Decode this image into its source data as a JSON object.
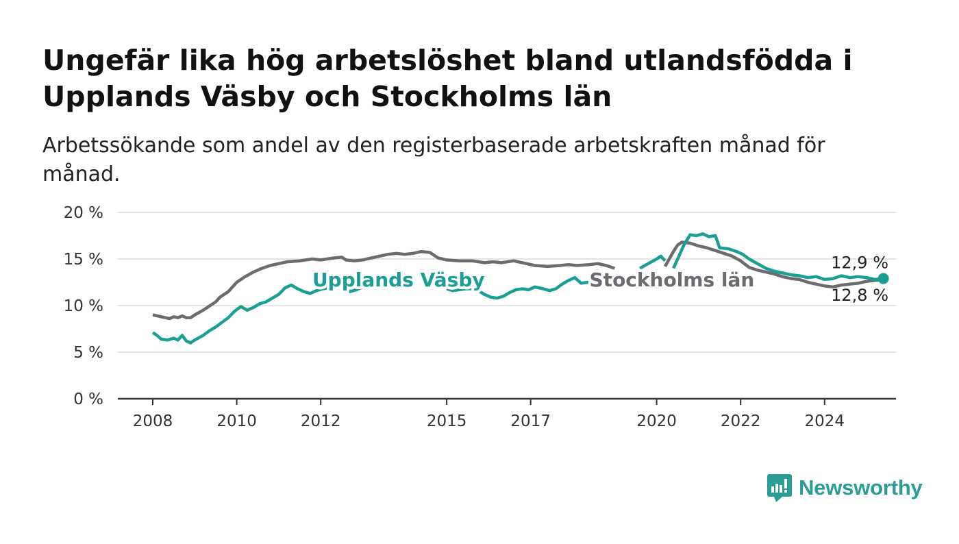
{
  "title": "Ungefär lika hög arbetslöshet bland utlandsfödda i Upplands Väsby och Stockholms län",
  "subtitle": "Arbetssökande som andel av den registerbaserade arbetskraften månad för månad.",
  "brand": {
    "name": "Newsworthy",
    "color": "#2a9d96"
  },
  "chart_data": {
    "type": "line",
    "ylim": [
      0,
      20
    ],
    "xlim": [
      2007.85,
      2025.7
    ],
    "yticks": [
      0,
      5,
      10,
      15,
      20
    ],
    "ytick_labels": [
      "0 %",
      "5 %",
      "10 %",
      "15 %",
      "20 %"
    ],
    "xticks": [
      2008,
      2010,
      2012,
      2015,
      2017,
      2020,
      2022,
      2024
    ],
    "xtick_labels": [
      "2008",
      "2010",
      "2012",
      "2015",
      "2017",
      "2020",
      "2022",
      "2024"
    ],
    "grid": true,
    "series": [
      {
        "name": "Stockholms län",
        "color": "#6b6b70",
        "end_label": "12,8 %",
        "segments": [
          [
            [
              2008.0,
              9.0
            ],
            [
              2008.2,
              8.8
            ],
            [
              2008.4,
              8.6
            ],
            [
              2008.5,
              8.8
            ],
            [
              2008.6,
              8.7
            ],
            [
              2008.7,
              8.9
            ],
            [
              2008.8,
              8.7
            ],
            [
              2008.9,
              8.7
            ],
            [
              2009.0,
              9.0
            ],
            [
              2009.2,
              9.5
            ],
            [
              2009.4,
              10.1
            ],
            [
              2009.5,
              10.4
            ],
            [
              2009.6,
              10.9
            ],
            [
              2009.8,
              11.5
            ],
            [
              2010.0,
              12.5
            ],
            [
              2010.2,
              13.1
            ],
            [
              2010.4,
              13.6
            ],
            [
              2010.6,
              14.0
            ],
            [
              2010.8,
              14.3
            ],
            [
              2011.0,
              14.5
            ],
            [
              2011.2,
              14.7
            ],
            [
              2011.5,
              14.8
            ],
            [
              2011.8,
              15.0
            ],
            [
              2012.0,
              14.9
            ],
            [
              2012.3,
              15.1
            ],
            [
              2012.5,
              15.2
            ],
            [
              2012.6,
              14.9
            ],
            [
              2012.8,
              14.8
            ],
            [
              2013.0,
              14.9
            ],
            [
              2013.2,
              15.1
            ],
            [
              2013.4,
              15.3
            ],
            [
              2013.6,
              15.5
            ],
            [
              2013.8,
              15.6
            ],
            [
              2014.0,
              15.5
            ],
            [
              2014.2,
              15.6
            ],
            [
              2014.4,
              15.8
            ],
            [
              2014.6,
              15.7
            ],
            [
              2014.8,
              15.1
            ],
            [
              2015.0,
              14.9
            ],
            [
              2015.3,
              14.8
            ],
            [
              2015.6,
              14.8
            ],
            [
              2015.9,
              14.6
            ],
            [
              2016.1,
              14.7
            ],
            [
              2016.3,
              14.6
            ],
            [
              2016.6,
              14.8
            ],
            [
              2016.9,
              14.5
            ],
            [
              2017.1,
              14.3
            ],
            [
              2017.4,
              14.2
            ],
            [
              2017.7,
              14.3
            ],
            [
              2017.9,
              14.4
            ],
            [
              2018.1,
              14.3
            ],
            [
              2018.4,
              14.4
            ],
            [
              2018.6,
              14.5
            ],
            [
              2018.8,
              14.3
            ],
            [
              2019.0,
              14.0
            ]
          ],
          [
            [
              2020.2,
              14.2
            ],
            [
              2020.4,
              15.8
            ],
            [
              2020.5,
              16.5
            ],
            [
              2020.6,
              16.8
            ],
            [
              2020.8,
              16.7
            ],
            [
              2021.0,
              16.4
            ],
            [
              2021.2,
              16.2
            ],
            [
              2021.4,
              15.9
            ],
            [
              2021.6,
              15.6
            ],
            [
              2021.8,
              15.3
            ],
            [
              2022.0,
              14.8
            ],
            [
              2022.2,
              14.1
            ],
            [
              2022.4,
              13.8
            ],
            [
              2022.6,
              13.6
            ],
            [
              2022.8,
              13.4
            ],
            [
              2023.0,
              13.1
            ],
            [
              2023.2,
              12.9
            ],
            [
              2023.4,
              12.8
            ],
            [
              2023.6,
              12.5
            ],
            [
              2023.8,
              12.3
            ],
            [
              2024.0,
              12.1
            ],
            [
              2024.2,
              12.0
            ],
            [
              2024.4,
              12.2
            ],
            [
              2024.6,
              12.3
            ],
            [
              2024.8,
              12.4
            ],
            [
              2025.0,
              12.6
            ],
            [
              2025.2,
              12.7
            ],
            [
              2025.4,
              12.8
            ]
          ]
        ]
      },
      {
        "name": "Upplands Väsby",
        "color": "#1b9e94",
        "end_label": "12,9 %",
        "segments": [
          [
            [
              2008.0,
              7.1
            ],
            [
              2008.1,
              6.8
            ],
            [
              2008.2,
              6.4
            ],
            [
              2008.35,
              6.3
            ],
            [
              2008.5,
              6.5
            ],
            [
              2008.6,
              6.3
            ],
            [
              2008.7,
              6.8
            ],
            [
              2008.8,
              6.2
            ],
            [
              2008.9,
              6.0
            ],
            [
              2009.0,
              6.3
            ],
            [
              2009.2,
              6.8
            ],
            [
              2009.35,
              7.3
            ],
            [
              2009.5,
              7.7
            ],
            [
              2009.65,
              8.2
            ],
            [
              2009.8,
              8.7
            ],
            [
              2009.95,
              9.4
            ],
            [
              2010.1,
              9.9
            ],
            [
              2010.25,
              9.5
            ],
            [
              2010.4,
              9.8
            ],
            [
              2010.55,
              10.2
            ],
            [
              2010.7,
              10.4
            ],
            [
              2010.85,
              10.8
            ],
            [
              2011.0,
              11.2
            ],
            [
              2011.15,
              11.9
            ],
            [
              2011.3,
              12.2
            ],
            [
              2011.45,
              11.8
            ],
            [
              2011.6,
              11.5
            ],
            [
              2011.75,
              11.3
            ],
            [
              2011.9,
              11.6
            ],
            [
              2012.05,
              11.8
            ],
            [
              2012.2,
              11.9
            ],
            [
              2012.4,
              12.0
            ],
            [
              2012.55,
              12.3
            ],
            [
              2012.7,
              11.5
            ],
            [
              2012.85,
              11.7
            ],
            [
              2013.0,
              12.0
            ]
          ],
          [
            [
              2014.75,
              12.0
            ],
            [
              2014.9,
              12.3
            ]
          ],
          [
            [
              2015.0,
              11.8
            ],
            [
              2015.15,
              11.6
            ],
            [
              2015.3,
              11.7
            ],
            [
              2015.45,
              11.8
            ],
            [
              2015.6,
              11.8
            ],
            [
              2015.75,
              11.6
            ],
            [
              2015.9,
              11.2
            ],
            [
              2016.05,
              10.9
            ],
            [
              2016.2,
              10.8
            ],
            [
              2016.35,
              11.0
            ],
            [
              2016.5,
              11.4
            ],
            [
              2016.65,
              11.7
            ],
            [
              2016.8,
              11.8
            ],
            [
              2016.95,
              11.7
            ],
            [
              2017.1,
              12.0
            ],
            [
              2017.3,
              11.8
            ],
            [
              2017.45,
              11.6
            ],
            [
              2017.6,
              11.8
            ],
            [
              2017.75,
              12.3
            ],
            [
              2017.9,
              12.7
            ],
            [
              2018.05,
              13.0
            ],
            [
              2018.2,
              12.4
            ],
            [
              2018.35,
              12.5
            ],
            [
              2018.5,
              12.2
            ]
          ],
          [
            [
              2019.6,
              14.0
            ],
            [
              2019.8,
              14.5
            ],
            [
              2020.0,
              15.0
            ],
            [
              2020.1,
              15.3
            ],
            [
              2020.2,
              14.8
            ]
          ],
          [
            [
              2020.4,
              14.0
            ],
            [
              2020.5,
              15.0
            ],
            [
              2020.65,
              16.5
            ],
            [
              2020.8,
              17.6
            ],
            [
              2020.95,
              17.5
            ],
            [
              2021.1,
              17.7
            ],
            [
              2021.25,
              17.4
            ],
            [
              2021.4,
              17.5
            ],
            [
              2021.5,
              16.2
            ],
            [
              2021.7,
              16.1
            ],
            [
              2021.9,
              15.8
            ],
            [
              2022.05,
              15.5
            ],
            [
              2022.2,
              15.0
            ],
            [
              2022.4,
              14.5
            ],
            [
              2022.6,
              14.0
            ],
            [
              2022.8,
              13.7
            ],
            [
              2023.0,
              13.5
            ],
            [
              2023.2,
              13.3
            ],
            [
              2023.4,
              13.2
            ],
            [
              2023.6,
              13.0
            ],
            [
              2023.8,
              13.1
            ],
            [
              2024.0,
              12.8
            ],
            [
              2024.2,
              12.9
            ],
            [
              2024.4,
              13.2
            ],
            [
              2024.6,
              13.0
            ],
            [
              2024.8,
              13.1
            ],
            [
              2025.0,
              13.0
            ],
            [
              2025.2,
              12.8
            ],
            [
              2025.4,
              12.9
            ]
          ]
        ]
      }
    ],
    "annotations": [
      {
        "text": "Upplands Väsby",
        "x": 2011.8,
        "y": 12.8,
        "series": "Upplands Väsby"
      },
      {
        "text": "Stockholms län",
        "x": 2018.4,
        "y": 12.8,
        "series": "Stockholms län"
      }
    ]
  }
}
